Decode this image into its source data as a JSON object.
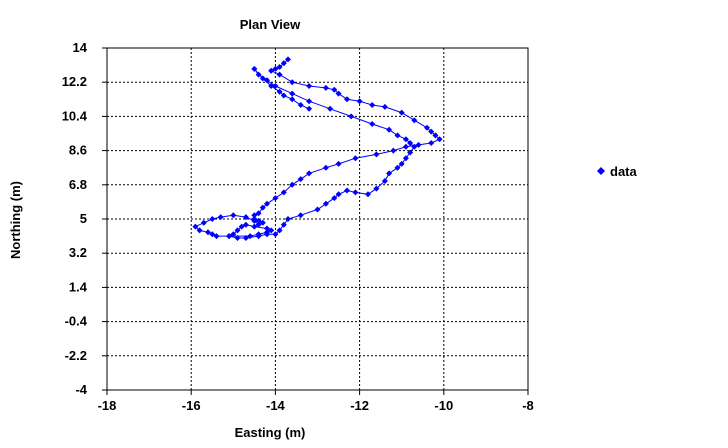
{
  "chart_data": {
    "type": "scatter",
    "title": "Plan View",
    "xlabel": "Easting (m)",
    "ylabel": "Northing (m)",
    "xlim": [
      -18,
      -8
    ],
    "ylim": [
      -4,
      14
    ],
    "xticks": [
      -18,
      -16,
      -14,
      -12,
      -10,
      -8
    ],
    "xtick_labels": [
      "-18",
      "-16",
      "-14",
      "-12",
      "-10",
      "-8"
    ],
    "yticks": [
      -4,
      -2.2,
      -0.4,
      1.4,
      3.2,
      5,
      6.8,
      8.6,
      10.4,
      12.2,
      14
    ],
    "ytick_labels": [
      "-4",
      "-2.2",
      "-0.4",
      "1.4",
      "3.2",
      "5",
      "6.8",
      "8.6",
      "10.4",
      "12.2",
      "14"
    ],
    "grid": true,
    "legend_position": "right",
    "series_color": "#0000ff",
    "series": [
      {
        "name": "data",
        "x": [
          -13.7,
          -13.8,
          -13.9,
          -14.0,
          -14.1,
          -13.9,
          -13.6,
          -13.2,
          -12.8,
          -12.6,
          -12.5,
          -12.3,
          -12.0,
          -11.7,
          -11.4,
          -11.0,
          -10.7,
          -10.4,
          -10.3,
          -10.2,
          -10.1,
          -10.3,
          -10.6,
          -10.9,
          -11.2,
          -11.6,
          -12.1,
          -12.5,
          -12.8,
          -13.2,
          -13.4,
          -13.6,
          -13.8,
          -14.0,
          -14.2,
          -14.3,
          -14.4,
          -14.5,
          -14.5,
          -14.4,
          -14.3,
          -14.4,
          -14.5,
          -14.7,
          -15.0,
          -15.3,
          -15.5,
          -15.7,
          -15.9,
          -15.8,
          -15.6,
          -15.5,
          -15.4,
          -15.1,
          -14.6,
          -14.4,
          -14.2,
          -14.1,
          -14.2,
          -14.5,
          -14.7,
          -14.8,
          -14.9,
          -15.0,
          -15.1,
          -14.9,
          -14.7,
          -14.4,
          -14.2,
          -14.0,
          -13.9,
          -13.8,
          -13.7,
          -13.4,
          -13.0,
          -12.8,
          -12.6,
          -12.5,
          -12.3,
          -12.1,
          -11.8,
          -11.6,
          -11.4,
          -11.3,
          -11.1,
          -11.0,
          -10.9,
          -10.8,
          -10.7,
          -10.8,
          -10.9,
          -11.1,
          -11.3,
          -11.7,
          -12.2,
          -12.7,
          -13.2,
          -13.6,
          -14.0,
          -14.2,
          -14.4,
          -14.5,
          -14.3,
          -14.1,
          -13.9,
          -13.8,
          -13.6,
          -13.4,
          -13.2
        ],
        "y": [
          13.4,
          13.2,
          13.0,
          12.9,
          12.8,
          12.6,
          12.2,
          12.0,
          11.9,
          11.8,
          11.6,
          11.3,
          11.2,
          11.0,
          10.9,
          10.6,
          10.2,
          9.8,
          9.6,
          9.4,
          9.2,
          9.0,
          8.9,
          8.8,
          8.6,
          8.4,
          8.2,
          7.9,
          7.7,
          7.4,
          7.1,
          6.8,
          6.4,
          6.1,
          5.8,
          5.6,
          5.3,
          5.2,
          5.0,
          4.9,
          4.8,
          4.7,
          4.9,
          5.1,
          5.2,
          5.1,
          5.0,
          4.8,
          4.6,
          4.4,
          4.3,
          4.2,
          4.1,
          4.1,
          4.1,
          4.2,
          4.3,
          4.4,
          4.5,
          4.6,
          4.7,
          4.6,
          4.4,
          4.2,
          4.1,
          4.0,
          4.0,
          4.1,
          4.2,
          4.2,
          4.4,
          4.7,
          5.0,
          5.2,
          5.5,
          5.8,
          6.1,
          6.3,
          6.5,
          6.4,
          6.3,
          6.6,
          7.0,
          7.4,
          7.7,
          7.9,
          8.2,
          8.5,
          8.8,
          9.0,
          9.2,
          9.4,
          9.7,
          10.0,
          10.4,
          10.8,
          11.2,
          11.6,
          12.0,
          12.3,
          12.6,
          12.9,
          12.4,
          12.0,
          11.7,
          11.5,
          11.3,
          11.0,
          10.8
        ]
      }
    ]
  }
}
